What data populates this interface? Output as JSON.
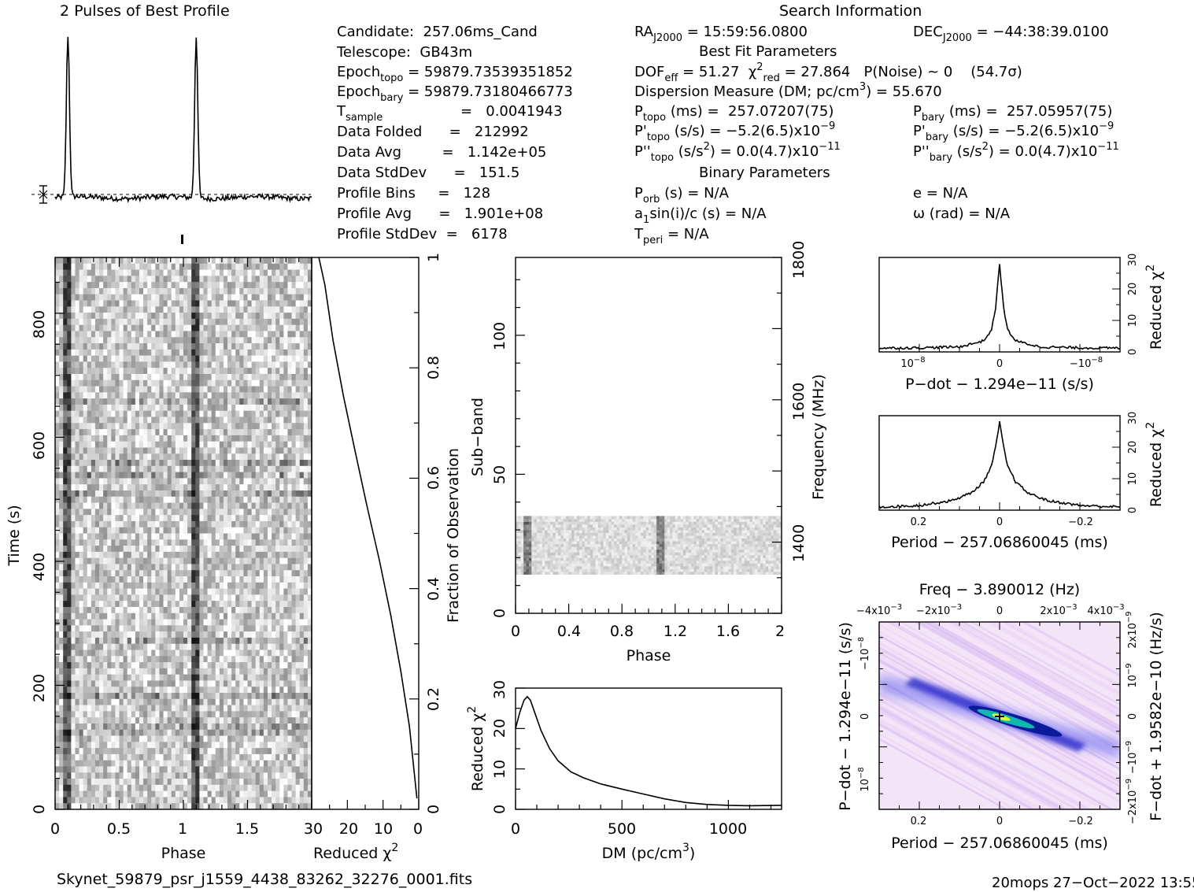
{
  "header": {
    "profile_title": "2 Pulses of Best Profile",
    "search_title": "Search Information",
    "candidate": "Candidate:  257.06ms_Cand",
    "telescope": "Telescope:  GB43m",
    "epoch_topo": "Epoch",
    "epoch_topo_sub": "topo",
    "epoch_topo_val": " = 59879.73539351852",
    "epoch_bary": "Epoch",
    "epoch_bary_sub": "bary",
    "epoch_bary_val": " = 59879.73180466773",
    "t_sample": "T",
    "t_sample_sub": "sample",
    "t_sample_val": "=   0.0041943",
    "data_folded": "Data Folded      =   212992",
    "data_avg": "Data Avg         =   1.142e+05",
    "data_stddev": "Data StdDev      =   151.5",
    "profile_bins": "Profile Bins     =   128",
    "profile_avg": "Profile Avg      =   1.901e+08",
    "profile_stddev": "Profile StdDev  =   6178",
    "ra": "RA",
    "ra_sub": "J2000",
    "ra_val": " = 15:59:56.0800",
    "dec": "DEC",
    "dec_sub": "J2000",
    "dec_val": " = −44:38:39.0100",
    "best_fit": "Best Fit Parameters",
    "dof": "DOF",
    "dof_sub": "eff",
    "dof_val": " = 51.27  χ",
    "chi_sup": "2",
    "chi_sub": "red",
    "chi_val": " = 27.864   P(Noise) ~ 0    (54.7σ)",
    "dm_line": "Dispersion Measure (DM; pc/cm",
    "dm_sup": "3",
    "dm_val": ") = 55.670",
    "p_topo": "P",
    "p_topo_sub": "topo",
    "p_topo_val": " (ms) =  257.07207(75)",
    "p_bary": "P",
    "p_bary_sub": "bary",
    "p_bary_val": " (ms) =  257.05957(75)",
    "pd_topo": "P'",
    "pd_topo_sub": "topo",
    "pd_topo_val": " (s/s) = −5.2(6.5)x10",
    "pd_topo_exp": "−9",
    "pd_bary": "P'",
    "pd_bary_sub": "bary",
    "pd_bary_val": " (s/s) = −5.2(6.5)x10",
    "pd_bary_exp": "−9",
    "pdd_topo": "P''",
    "pdd_topo_sub": "topo",
    "pdd_topo_val": " (s/s",
    "pdd_topo_sup": "2",
    "pdd_topo_val2": ") = 0.0(4.7)x10",
    "pdd_topo_exp": "−11",
    "pdd_bary": "P''",
    "pdd_bary_sub": "bary",
    "pdd_bary_val": " (s/s",
    "pdd_bary_sup": "2",
    "pdd_bary_val2": ") = 0.0(4.7)x10",
    "pdd_bary_exp": "−11",
    "binary": "Binary Parameters",
    "porb": "P",
    "porb_sub": "orb",
    "porb_val": " (s) = N/A",
    "ecc": "e = N/A",
    "asini": "a",
    "asini_sub": "1",
    "asini_val": "sin(i)/c (s) = N/A",
    "omega": "ω (rad) = N/A",
    "tperi": "T",
    "tperi_sub": "peri",
    "tperi_val": " = N/A"
  },
  "footer": {
    "filename": "Skynet_59879_psr_j1559_4438_83262_32276_0001.fits",
    "stamp": "20mops 27−Oct−2022 13:55"
  },
  "chart_data": [
    {
      "type": "line",
      "name": "profile",
      "title": "2 Pulses of Best Profile",
      "x": [
        0,
        0.09,
        0.1,
        0.11,
        0.2,
        0.5,
        0.9,
        1.0,
        1.09,
        1.1,
        1.11,
        1.2,
        1.5,
        1.9,
        2.0
      ],
      "y": [
        0.02,
        0.1,
        1.0,
        0.1,
        0.0,
        -0.02,
        0.01,
        0.02,
        0.1,
        1.0,
        0.1,
        0.0,
        -0.02,
        0.01,
        0.02
      ]
    },
    {
      "type": "heatmap",
      "name": "time-phase",
      "xlabel": "Phase",
      "ylabel": "Time (s)",
      "xticks": [
        "0",
        "0.5",
        "1",
        "1.5"
      ],
      "yticks": [
        "0",
        "200",
        "400",
        "600",
        "800"
      ],
      "xlim": [
        0,
        2
      ],
      "ylim": [
        0,
        890
      ],
      "pulse_phases": [
        0.09,
        1.09
      ],
      "colormap": "grayscale"
    },
    {
      "type": "line",
      "name": "reduced-chi2-vs-time",
      "xlabel": "Reduced χ",
      "xlabel_sup": "2",
      "ylabel": "Fraction of Observation",
      "xticks": [
        "30",
        "20",
        "10",
        "0"
      ],
      "yticks": [
        "0",
        "0.2",
        "0.4",
        "0.6",
        "0.8",
        "1"
      ],
      "x": [
        28.0,
        26.5,
        24.0,
        21.0,
        18.0,
        14.5,
        11.0,
        8.0,
        5.0,
        2.5,
        0.5
      ],
      "y": [
        1.0,
        0.95,
        0.85,
        0.75,
        0.65,
        0.55,
        0.45,
        0.35,
        0.25,
        0.15,
        0.02
      ]
    },
    {
      "type": "heatmap",
      "name": "subband-phase",
      "xlabel": "Phase",
      "ylabel": "Sub−band",
      "y2label": "Frequency (MHz)",
      "xticks": [
        "0",
        "0.4",
        "0.8",
        "1.2",
        "1.6",
        "2"
      ],
      "yticks": [
        "0",
        "50",
        "100"
      ],
      "y2ticks": [
        "1400",
        "1600",
        "1800"
      ],
      "data_subbands": [
        14,
        35
      ],
      "pulse_phases": [
        0.09,
        1.09
      ]
    },
    {
      "type": "line",
      "name": "dm-chi2",
      "xlabel": "DM (pc/cm",
      "xlabel_sup": "3",
      "xlabel_tail": ")",
      "ylabel": "Reduced χ",
      "ylabel_sup": "2",
      "xticks": [
        "0",
        "500",
        "1000"
      ],
      "yticks": [
        "0",
        "10",
        "20",
        "30"
      ],
      "xlim": [
        0,
        1250
      ],
      "ylim": [
        0,
        30
      ],
      "x": [
        0,
        20,
        40,
        55,
        70,
        90,
        120,
        160,
        200,
        260,
        320,
        400,
        500,
        600,
        700,
        800,
        900,
        1000,
        1100,
        1250
      ],
      "y": [
        20,
        24,
        27,
        27.9,
        27,
        24,
        19.5,
        15,
        12,
        9.3,
        7.8,
        6.3,
        5.0,
        3.8,
        2.6,
        1.7,
        1.2,
        1.0,
        0.9,
        1.0
      ]
    },
    {
      "type": "line",
      "name": "pdot-chi2",
      "xlabel": "P−dot − 1.294e−11 (s/s)",
      "ylabel": "Reduced χ",
      "ylabel_sup": "2",
      "xticks": [
        "10",
        "0",
        "−10"
      ],
      "xtick_exp": "−8",
      "yticks": [
        "0",
        "10",
        "20",
        "30"
      ],
      "xlim": [
        1.5e-08,
        -1.5e-08
      ],
      "ylim": [
        0,
        30
      ],
      "x": [
        1.5e-08,
        1e-08,
        5e-09,
        2e-09,
        1e-09,
        5e-10,
        0,
        -5e-10,
        -1e-09,
        -2e-09,
        -5e-09,
        -1e-08,
        -1.5e-08
      ],
      "y": [
        1.2,
        1.3,
        1.6,
        3.5,
        7,
        14,
        27.9,
        14,
        7,
        3.5,
        1.6,
        1.3,
        1.2
      ]
    },
    {
      "type": "line",
      "name": "period-chi2",
      "xlabel": "Period − 257.06860045 (ms)",
      "ylabel": "Reduced χ",
      "ylabel_sup": "2",
      "xticks": [
        "0.2",
        "0",
        "−0.2"
      ],
      "yticks": [
        "0",
        "10",
        "20",
        "30"
      ],
      "xlim": [
        0.3,
        -0.3
      ],
      "ylim": [
        0,
        30
      ],
      "x": [
        0.3,
        0.2,
        0.12,
        0.07,
        0.04,
        0.02,
        0.01,
        0,
        -0.01,
        -0.02,
        -0.04,
        -0.07,
        -0.12,
        -0.2,
        -0.3
      ],
      "y": [
        1.0,
        1.5,
        3.0,
        5.5,
        9,
        14,
        20,
        27.9,
        20,
        14,
        9,
        5.5,
        3.0,
        1.5,
        1.0
      ]
    },
    {
      "type": "heatmap",
      "name": "pdot-period",
      "title": "Freq − 3.890012 (Hz)",
      "xlabel": "Period − 257.06860045 (ms)",
      "ylabel": "P−dot − 1.294e−11 (s/s)",
      "y2label": "F−dot + 1.9582e−10 (Hz/s)",
      "xticks": [
        "0.2",
        "0",
        "−0.2"
      ],
      "x2ticks": [
        "−4x10",
        "−2x10",
        "0",
        "2x10",
        "4x10"
      ],
      "x2tick_exp": "−3",
      "yticks": [
        "−10",
        "0",
        "10"
      ],
      "ytick_exp": "−8",
      "y2ticks": [
        "2x10",
        "10",
        "0",
        "−10",
        "−2x10"
      ],
      "y2tick_exp": "−9",
      "peak": [
        0,
        0
      ],
      "colors": {
        "background": "#f0d8f4",
        "band": "#2a2ad0",
        "core": "#20c0a0",
        "peak": "#e0ff20"
      }
    }
  ]
}
